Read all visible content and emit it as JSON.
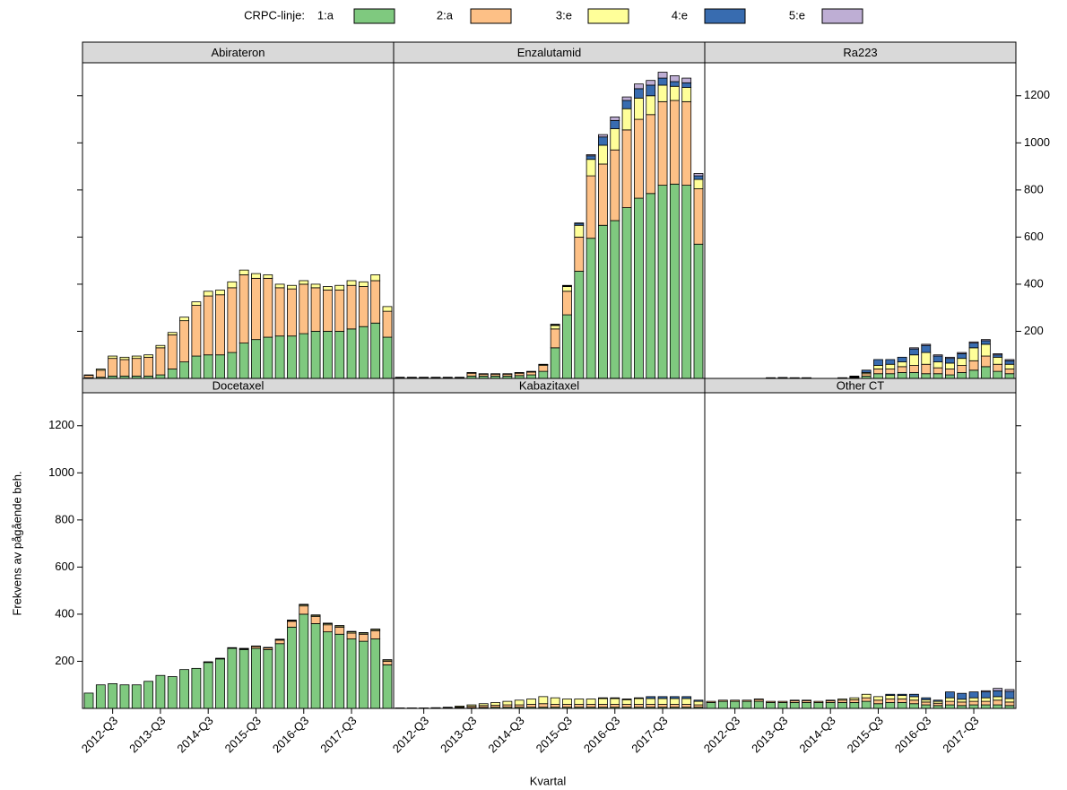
{
  "chart_data": {
    "type": "bar",
    "stacked": true,
    "legend_title": "CRPC-linje:",
    "legend_position": "top",
    "xlabel": "Kvartal",
    "ylabel": "Frekvens av pågående beh.",
    "categories": [
      null,
      null,
      "2012-Q3",
      null,
      null,
      null,
      "2013-Q3",
      null,
      null,
      null,
      "2014-Q3",
      null,
      null,
      null,
      "2015-Q3",
      null,
      null,
      null,
      "2016-Q3",
      null,
      null,
      null,
      "2017-Q3",
      null,
      null,
      null
    ],
    "ylim": [
      0,
      1340
    ],
    "yticks": [
      200,
      400,
      600,
      800,
      1000,
      1200
    ],
    "series": [
      {
        "name": "1:a",
        "color": "#7fc97f"
      },
      {
        "name": "2:a",
        "color": "#fdc086"
      },
      {
        "name": "3:e",
        "color": "#ffff99"
      },
      {
        "name": "4:e",
        "color": "#386cb0"
      },
      {
        "name": "5:e",
        "color": "#beaed4"
      }
    ],
    "panels": [
      {
        "title": "Abirateron",
        "values": [
          [
            3,
            5,
            10,
            10,
            10,
            10,
            15,
            40,
            70,
            95,
            100,
            100,
            110,
            150,
            165,
            175,
            180,
            180,
            190,
            200,
            200,
            200,
            210,
            220,
            235,
            175
          ],
          [
            10,
            30,
            75,
            70,
            75,
            80,
            115,
            145,
            175,
            215,
            250,
            255,
            275,
            290,
            260,
            250,
            205,
            200,
            210,
            185,
            175,
            175,
            185,
            170,
            180,
            110
          ],
          [
            2,
            5,
            10,
            10,
            10,
            10,
            10,
            10,
            15,
            15,
            20,
            20,
            25,
            20,
            20,
            15,
            15,
            15,
            15,
            15,
            15,
            20,
            20,
            20,
            25,
            20
          ],
          [
            0,
            0,
            0,
            0,
            0,
            0,
            0,
            0,
            0,
            0,
            0,
            0,
            0,
            0,
            0,
            0,
            0,
            0,
            0,
            0,
            0,
            0,
            0,
            0,
            0,
            0
          ],
          [
            0,
            0,
            0,
            0,
            0,
            0,
            0,
            0,
            0,
            0,
            0,
            0,
            0,
            0,
            0,
            0,
            0,
            0,
            0,
            0,
            0,
            0,
            0,
            0,
            0,
            0
          ]
        ]
      },
      {
        "title": "Enzalutamid",
        "values": [
          [
            3,
            3,
            3,
            3,
            3,
            3,
            10,
            10,
            10,
            10,
            12,
            15,
            30,
            130,
            270,
            455,
            595,
            650,
            670,
            725,
            765,
            785,
            820,
            825,
            820,
            570
          ],
          [
            2,
            2,
            2,
            2,
            2,
            2,
            12,
            8,
            8,
            8,
            10,
            12,
            25,
            80,
            100,
            145,
            265,
            260,
            300,
            330,
            335,
            335,
            355,
            355,
            355,
            235
          ],
          [
            0,
            0,
            0,
            0,
            0,
            0,
            2,
            1,
            1,
            1,
            2,
            2,
            4,
            15,
            20,
            50,
            70,
            80,
            90,
            90,
            90,
            80,
            70,
            60,
            60,
            40
          ],
          [
            0,
            0,
            0,
            0,
            0,
            0,
            1,
            1,
            1,
            1,
            1,
            1,
            1,
            3,
            3,
            8,
            15,
            35,
            35,
            35,
            40,
            45,
            30,
            20,
            20,
            15
          ],
          [
            0,
            0,
            0,
            0,
            0,
            0,
            0,
            0,
            0,
            0,
            0,
            0,
            0,
            2,
            2,
            2,
            5,
            10,
            15,
            15,
            20,
            20,
            25,
            25,
            20,
            10
          ]
        ]
      },
      {
        "title": "Ra223",
        "values": [
          [
            0,
            0,
            0,
            0,
            0,
            1,
            1,
            1,
            1,
            0,
            0,
            1,
            3,
            10,
            20,
            20,
            25,
            25,
            20,
            20,
            15,
            25,
            35,
            50,
            30,
            20
          ],
          [
            0,
            0,
            0,
            0,
            0,
            1,
            1,
            1,
            1,
            0,
            0,
            1,
            3,
            10,
            20,
            20,
            25,
            30,
            40,
            25,
            25,
            30,
            40,
            45,
            30,
            20
          ],
          [
            0,
            0,
            0,
            0,
            0,
            0,
            0,
            0,
            0,
            0,
            0,
            0,
            2,
            5,
            15,
            20,
            20,
            45,
            50,
            25,
            25,
            30,
            55,
            50,
            30,
            20
          ],
          [
            0,
            0,
            0,
            0,
            0,
            1,
            2,
            1,
            1,
            0,
            0,
            1,
            2,
            10,
            25,
            20,
            20,
            25,
            30,
            25,
            20,
            20,
            20,
            15,
            10,
            15
          ],
          [
            0,
            0,
            0,
            0,
            0,
            0,
            0,
            0,
            0,
            0,
            0,
            0,
            0,
            0,
            0,
            0,
            0,
            5,
            5,
            5,
            5,
            5,
            5,
            5,
            5,
            5
          ]
        ]
      },
      {
        "title": "Docetaxel",
        "values": [
          [
            65,
            100,
            105,
            100,
            100,
            115,
            140,
            135,
            165,
            170,
            195,
            210,
            255,
            250,
            255,
            250,
            275,
            345,
            400,
            360,
            325,
            315,
            295,
            285,
            295,
            185
          ],
          [
            0,
            0,
            0,
            0,
            0,
            0,
            0,
            0,
            0,
            0,
            3,
            3,
            3,
            3,
            8,
            7,
            15,
            25,
            35,
            30,
            30,
            30,
            25,
            30,
            35,
            15
          ],
          [
            0,
            0,
            0,
            0,
            0,
            0,
            0,
            0,
            0,
            0,
            0,
            0,
            0,
            0,
            0,
            0,
            2,
            3,
            5,
            5,
            5,
            5,
            5,
            5,
            5,
            5
          ],
          [
            0,
            0,
            0,
            0,
            0,
            0,
            0,
            0,
            0,
            0,
            0,
            0,
            0,
            2,
            2,
            2,
            2,
            2,
            2,
            2,
            2,
            2,
            2,
            2,
            2,
            2
          ],
          [
            0,
            0,
            0,
            0,
            0,
            0,
            0,
            0,
            0,
            0,
            0,
            0,
            0,
            0,
            0,
            0,
            0,
            0,
            0,
            0,
            0,
            0,
            0,
            0,
            0,
            0
          ]
        ]
      },
      {
        "title": "Kabazitaxel",
        "values": [
          [
            0,
            0,
            0,
            1,
            1,
            2,
            3,
            4,
            5,
            5,
            5,
            5,
            5,
            5,
            5,
            5,
            5,
            5,
            5,
            5,
            5,
            5,
            5,
            5,
            5,
            5
          ],
          [
            1,
            1,
            1,
            1,
            2,
            4,
            6,
            8,
            8,
            10,
            10,
            12,
            15,
            12,
            12,
            12,
            12,
            12,
            12,
            12,
            12,
            12,
            12,
            12,
            12,
            10
          ],
          [
            1,
            1,
            1,
            1,
            2,
            4,
            6,
            8,
            12,
            15,
            20,
            23,
            30,
            28,
            23,
            23,
            23,
            25,
            25,
            20,
            25,
            25,
            25,
            25,
            25,
            15
          ],
          [
            0,
            0,
            0,
            0,
            0,
            0,
            0,
            0,
            0,
            0,
            0,
            0,
            0,
            0,
            0,
            0,
            0,
            3,
            3,
            3,
            3,
            8,
            8,
            8,
            8,
            5
          ],
          [
            0,
            0,
            0,
            0,
            0,
            0,
            0,
            0,
            0,
            0,
            0,
            0,
            0,
            0,
            0,
            0,
            0,
            0,
            0,
            0,
            0,
            0,
            0,
            0,
            0,
            0
          ]
        ]
      },
      {
        "title": "Other CT",
        "values": [
          [
            25,
            30,
            30,
            30,
            30,
            25,
            25,
            25,
            25,
            25,
            25,
            25,
            25,
            30,
            20,
            25,
            25,
            20,
            15,
            12,
            15,
            12,
            15,
            15,
            15,
            12
          ],
          [
            5,
            5,
            5,
            5,
            8,
            5,
            5,
            8,
            8,
            5,
            8,
            10,
            12,
            15,
            15,
            15,
            15,
            15,
            12,
            10,
            15,
            15,
            15,
            15,
            20,
            15
          ],
          [
            0,
            0,
            0,
            0,
            2,
            0,
            0,
            2,
            2,
            0,
            2,
            5,
            8,
            15,
            15,
            15,
            15,
            15,
            10,
            8,
            15,
            12,
            15,
            15,
            15,
            15
          ],
          [
            0,
            0,
            0,
            0,
            0,
            0,
            0,
            0,
            0,
            0,
            0,
            0,
            0,
            0,
            0,
            5,
            5,
            10,
            8,
            5,
            25,
            25,
            25,
            25,
            25,
            30
          ],
          [
            0,
            0,
            0,
            0,
            0,
            0,
            0,
            0,
            0,
            0,
            0,
            0,
            0,
            0,
            0,
            0,
            0,
            0,
            0,
            0,
            0,
            0,
            0,
            5,
            10,
            8
          ]
        ]
      }
    ]
  }
}
